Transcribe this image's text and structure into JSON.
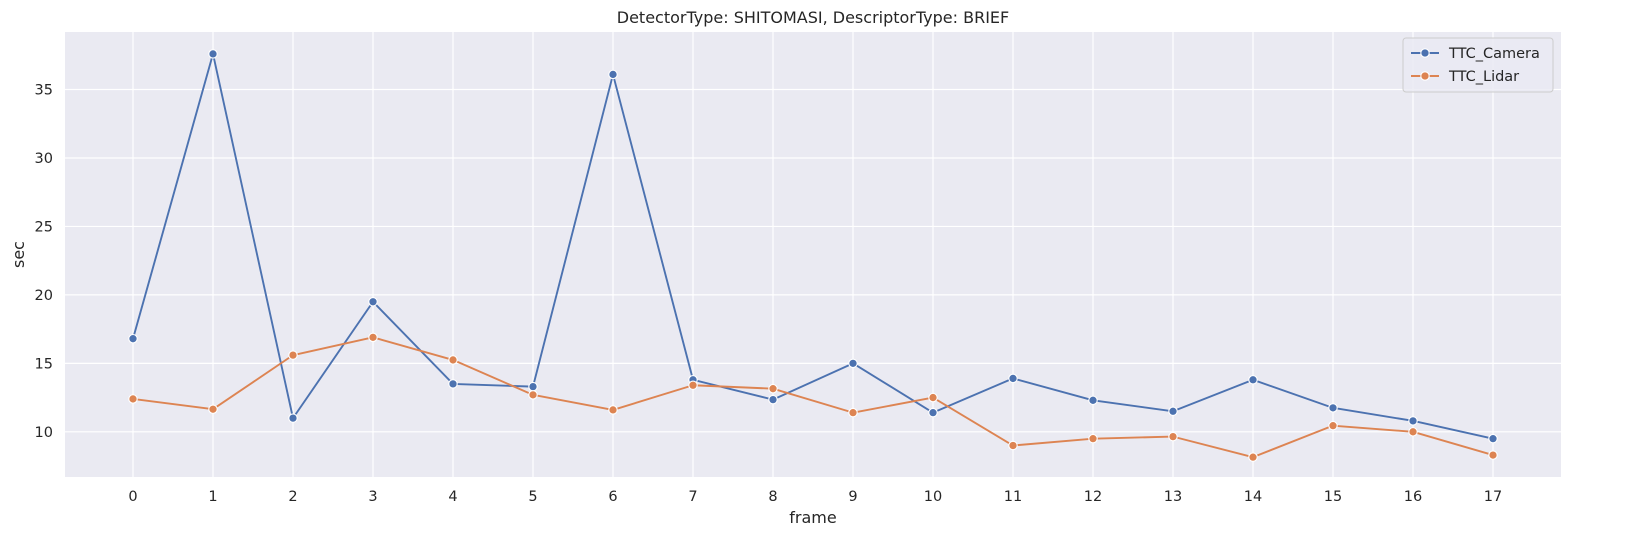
{
  "chart_data": {
    "type": "line",
    "title": "DetectorType: SHITOMASI, DescriptorType: BRIEF",
    "xlabel": "frame",
    "ylabel": "sec",
    "x": [
      0,
      1,
      2,
      3,
      4,
      5,
      6,
      7,
      8,
      9,
      10,
      11,
      12,
      13,
      14,
      15,
      16,
      17
    ],
    "xlim": [
      -0.85,
      17.85
    ],
    "ylim": [
      6.7,
      39.2
    ],
    "yticks": [
      10,
      15,
      20,
      25,
      30,
      35
    ],
    "grid": true,
    "legend_position": "top-right",
    "series": [
      {
        "name": "TTC_Camera",
        "color": "#4c72b0",
        "marker": "circle",
        "values": [
          16.8,
          37.6,
          11.0,
          19.5,
          13.5,
          13.3,
          36.1,
          13.8,
          12.35,
          15.0,
          11.4,
          13.9,
          12.3,
          11.5,
          13.8,
          11.75,
          10.8,
          9.5
        ]
      },
      {
        "name": "TTC_Lidar",
        "color": "#dd8452",
        "marker": "circle",
        "values": [
          12.4,
          11.65,
          15.6,
          16.9,
          15.25,
          12.7,
          11.6,
          13.4,
          13.15,
          11.4,
          12.5,
          9.0,
          9.5,
          9.65,
          8.15,
          10.45,
          10.0,
          8.3
        ]
      }
    ]
  }
}
